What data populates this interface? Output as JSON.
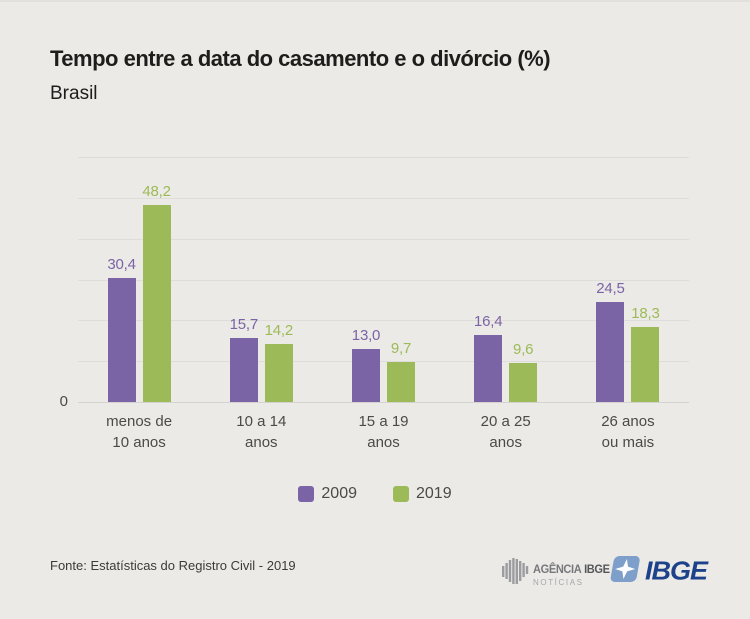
{
  "header": {
    "title": "Tempo entre a data do casamento e o divórcio (%)",
    "subtitle": "Brasil"
  },
  "chart_data": {
    "type": "bar",
    "title": "Tempo entre a data do casamento e o divórcio (%)",
    "subtitle": "Brasil",
    "categories": [
      "menos de\n10 anos",
      "10 a 14\nanos",
      "15 a 19\nanos",
      "20 a 25\nanos",
      "26 anos\nou mais"
    ],
    "series": [
      {
        "name": "2009",
        "color": "#7b64a5",
        "values": [
          30.4,
          15.7,
          13.0,
          16.4,
          24.5
        ],
        "labels": [
          "30,4",
          "15,7",
          "13,0",
          "16,4",
          "24,5"
        ]
      },
      {
        "name": "2019",
        "color": "#9cba57",
        "values": [
          48.2,
          14.2,
          9.7,
          9.6,
          18.3
        ],
        "labels": [
          "48,2",
          "14,2",
          "9,7",
          "9,6",
          "18,3"
        ]
      }
    ],
    "ylim": [
      0,
      60
    ],
    "grid_step": 10,
    "grid": true,
    "y_zero_label": "0",
    "legend_position": "bottom",
    "value_labels_shown": true
  },
  "footer": {
    "source": "Fonte: Estatísticas do Registro Civil - 2019",
    "agencia_logo": {
      "word1": "AGÊNCIA",
      "word2": "IBGE",
      "line2": "NOTÍCIAS"
    },
    "ibge_logo": {
      "text": "IBGE"
    }
  },
  "colors": {
    "background": "#eceae7",
    "gridline": "#dfddda",
    "series_2009": "#7b64a5",
    "series_2019": "#9cba57",
    "title_text": "#1d1d1b",
    "axis_text": "#4a4a48",
    "ibge_blue": "#1d4289",
    "ibge_icon_blue": "#7d9fca"
  }
}
